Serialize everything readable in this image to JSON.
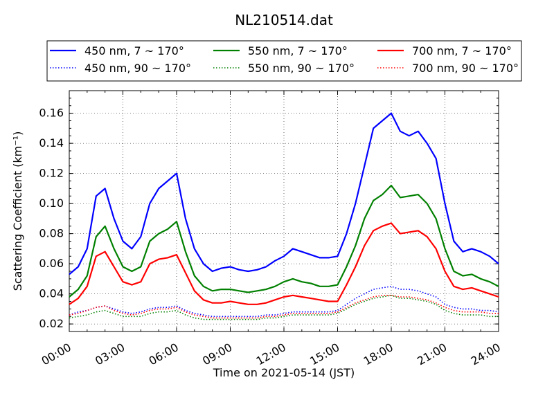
{
  "chart_data": {
    "type": "line",
    "title": "NL210514.dat",
    "xlabel": "Time on 2021-05-14 (JST)",
    "ylabel": "Scattering Coefficient (km⁻¹)",
    "xlim": [
      0,
      24
    ],
    "ylim": [
      0.015,
      0.175
    ],
    "x_tick_labels": [
      "00:00",
      "03:00",
      "06:00",
      "09:00",
      "12:00",
      "15:00",
      "18:00",
      "21:00",
      "24:00"
    ],
    "y_tick_labels": [
      "0.02",
      "0.04",
      "0.06",
      "0.08",
      "0.10",
      "0.12",
      "0.14",
      "0.16"
    ],
    "grid": true,
    "legend_position": "top, above plot",
    "x_units": "hours",
    "x": [
      0,
      0.5,
      1,
      1.5,
      2,
      2.5,
      3,
      3.5,
      4,
      4.5,
      5,
      5.5,
      6,
      6.5,
      7,
      7.5,
      8,
      8.5,
      9,
      9.5,
      10,
      10.5,
      11,
      11.5,
      12,
      12.5,
      13,
      13.5,
      14,
      14.5,
      15,
      15.5,
      16,
      16.5,
      17,
      17.5,
      18,
      18.5,
      19,
      19.5,
      20,
      20.5,
      21,
      21.5,
      22,
      22.5,
      23,
      23.5,
      24
    ],
    "series": [
      {
        "name": "450 nm, 7 ~ 170°",
        "color": "#0000ff",
        "style": "solid",
        "values": [
          0.053,
          0.058,
          0.07,
          0.105,
          0.11,
          0.09,
          0.075,
          0.07,
          0.078,
          0.1,
          0.11,
          0.115,
          0.12,
          0.09,
          0.07,
          0.06,
          0.055,
          0.057,
          0.058,
          0.056,
          0.055,
          0.056,
          0.058,
          0.062,
          0.065,
          0.07,
          0.068,
          0.066,
          0.064,
          0.064,
          0.065,
          0.08,
          0.1,
          0.125,
          0.15,
          0.155,
          0.16,
          0.148,
          0.145,
          0.148,
          0.14,
          0.13,
          0.1,
          0.075,
          0.068,
          0.07,
          0.068,
          0.065,
          0.06
        ]
      },
      {
        "name": "550 nm, 7 ~ 170°",
        "color": "#008000",
        "style": "solid",
        "values": [
          0.038,
          0.043,
          0.052,
          0.078,
          0.085,
          0.07,
          0.058,
          0.055,
          0.058,
          0.075,
          0.08,
          0.083,
          0.088,
          0.068,
          0.052,
          0.045,
          0.042,
          0.043,
          0.043,
          0.042,
          0.041,
          0.042,
          0.043,
          0.045,
          0.048,
          0.05,
          0.048,
          0.047,
          0.045,
          0.045,
          0.046,
          0.058,
          0.072,
          0.09,
          0.102,
          0.106,
          0.112,
          0.104,
          0.105,
          0.106,
          0.1,
          0.09,
          0.07,
          0.055,
          0.052,
          0.053,
          0.05,
          0.048,
          0.045
        ]
      },
      {
        "name": "700 nm, 7 ~ 170°",
        "color": "#ff0000",
        "style": "solid",
        "values": [
          0.033,
          0.037,
          0.045,
          0.065,
          0.068,
          0.058,
          0.048,
          0.046,
          0.048,
          0.06,
          0.063,
          0.064,
          0.066,
          0.054,
          0.042,
          0.036,
          0.034,
          0.034,
          0.035,
          0.034,
          0.033,
          0.033,
          0.034,
          0.036,
          0.038,
          0.039,
          0.038,
          0.037,
          0.036,
          0.035,
          0.035,
          0.046,
          0.058,
          0.072,
          0.082,
          0.085,
          0.087,
          0.08,
          0.081,
          0.082,
          0.078,
          0.07,
          0.055,
          0.045,
          0.043,
          0.044,
          0.042,
          0.04,
          0.038
        ]
      },
      {
        "name": "450 nm, 90 ~ 170°",
        "color": "#0000ff",
        "style": "dotted",
        "values": [
          0.026,
          0.028,
          0.029,
          0.031,
          0.032,
          0.03,
          0.028,
          0.027,
          0.028,
          0.03,
          0.031,
          0.031,
          0.032,
          0.029,
          0.027,
          0.026,
          0.025,
          0.025,
          0.025,
          0.025,
          0.025,
          0.025,
          0.026,
          0.026,
          0.027,
          0.028,
          0.028,
          0.028,
          0.028,
          0.028,
          0.029,
          0.033,
          0.037,
          0.04,
          0.043,
          0.044,
          0.045,
          0.043,
          0.043,
          0.042,
          0.04,
          0.038,
          0.033,
          0.031,
          0.03,
          0.03,
          0.029,
          0.029,
          0.028
        ]
      },
      {
        "name": "550 nm, 90 ~ 170°",
        "color": "#008000",
        "style": "dotted",
        "values": [
          0.024,
          0.025,
          0.026,
          0.028,
          0.029,
          0.027,
          0.025,
          0.025,
          0.025,
          0.027,
          0.028,
          0.028,
          0.029,
          0.026,
          0.024,
          0.023,
          0.023,
          0.023,
          0.023,
          0.023,
          0.023,
          0.023,
          0.024,
          0.024,
          0.025,
          0.026,
          0.026,
          0.026,
          0.026,
          0.026,
          0.027,
          0.03,
          0.033,
          0.035,
          0.037,
          0.038,
          0.039,
          0.037,
          0.037,
          0.036,
          0.035,
          0.033,
          0.029,
          0.027,
          0.026,
          0.026,
          0.026,
          0.025,
          0.025
        ]
      },
      {
        "name": "700 nm, 90 ~ 170°",
        "color": "#ff0000",
        "style": "dotted",
        "values": [
          0.026,
          0.027,
          0.029,
          0.031,
          0.032,
          0.029,
          0.027,
          0.026,
          0.027,
          0.029,
          0.03,
          0.03,
          0.031,
          0.028,
          0.026,
          0.025,
          0.024,
          0.024,
          0.024,
          0.024,
          0.024,
          0.024,
          0.025,
          0.025,
          0.026,
          0.027,
          0.027,
          0.027,
          0.027,
          0.027,
          0.028,
          0.031,
          0.034,
          0.036,
          0.038,
          0.039,
          0.039,
          0.038,
          0.038,
          0.037,
          0.036,
          0.034,
          0.031,
          0.029,
          0.028,
          0.028,
          0.028,
          0.027,
          0.027
        ]
      }
    ]
  }
}
